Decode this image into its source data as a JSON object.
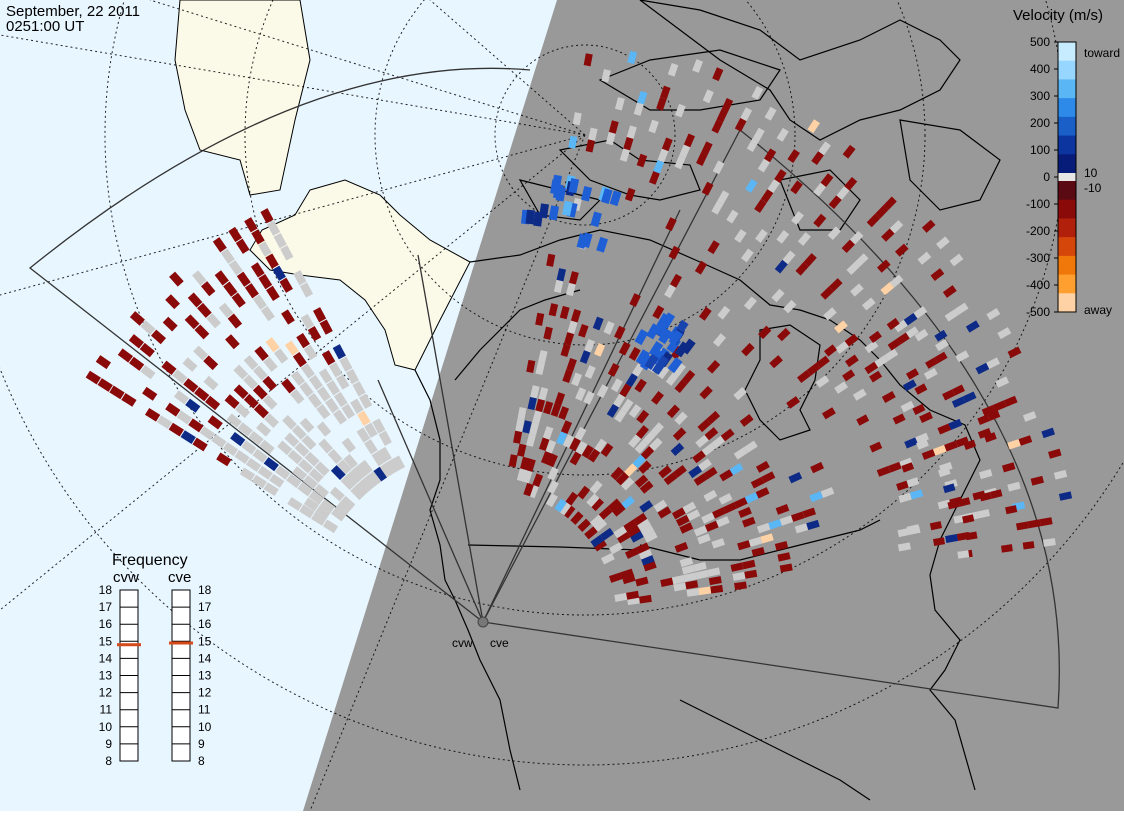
{
  "header": {
    "date": "September, 22 2011",
    "time": "0251:00 UT"
  },
  "legend": {
    "title": "Velocity (m/s)",
    "ticks": [
      "500",
      "400",
      "300",
      "200",
      "100",
      "0",
      "-100",
      "-200",
      "-300",
      "-400",
      "-500"
    ],
    "toward_label": "toward",
    "away_label": "away",
    "pos_threshold": "10",
    "neg_threshold": "-10",
    "scale_colors": [
      "#c8ecff",
      "#96d6ff",
      "#5ab6f5",
      "#2d8ae8",
      "#1a5fc8",
      "#0c35a0",
      "#071c78",
      "#5a0a12",
      "#8a0a0a",
      "#b0200a",
      "#d4460a",
      "#f0780a",
      "#ff9f30",
      "#ffd2a6"
    ]
  },
  "frequency": {
    "title": "Frequency",
    "radars": [
      {
        "name": "cvw",
        "value_mhz": 14.8
      },
      {
        "name": "cve",
        "value_mhz": 14.9
      }
    ],
    "ticks": [
      "18",
      "17",
      "16",
      "15",
      "14",
      "13",
      "12",
      "11",
      "10",
      "9",
      "8"
    ],
    "indicator_color": "#d44a1a"
  },
  "sites": [
    {
      "name": "cvw"
    },
    {
      "name": "cve"
    }
  ],
  "colors": {
    "ocean_day": "#e8f6ff",
    "land_day": "#fbf9e8",
    "night": "#999999",
    "ground_scatter": "#cccccc",
    "coast": "#000000"
  }
}
